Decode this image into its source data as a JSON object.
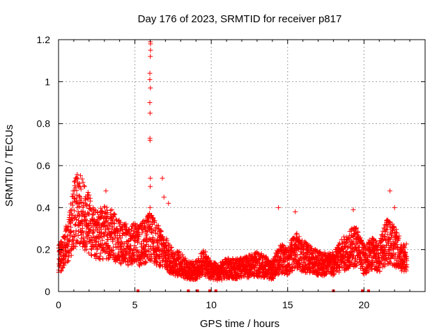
{
  "chart_data": {
    "type": "scatter",
    "title": "Day 176 of 2023, SRMTID for receiver p817",
    "xlabel": "GPS time / hours",
    "ylabel": "SRMTID / TECUs",
    "xlim": [
      0,
      24
    ],
    "ylim": [
      0,
      1.2
    ],
    "xticks": [
      0,
      5,
      10,
      15,
      20
    ],
    "xtick_labels": [
      "0",
      "5",
      "10",
      "15",
      "20"
    ],
    "yticks": [
      0,
      0.2,
      0.4,
      0.6,
      0.8,
      1.0,
      1.2
    ],
    "ytick_labels": [
      "0",
      "0.2",
      "0.4",
      "0.6",
      "0.8",
      "1",
      "1.2"
    ],
    "grid": true,
    "marker": "plus",
    "marker_color": "#ff0000",
    "envelope": [
      [
        0.0,
        0.16
      ],
      [
        0.3,
        0.18
      ],
      [
        0.5,
        0.22
      ],
      [
        0.8,
        0.3
      ],
      [
        1.0,
        0.36
      ],
      [
        1.3,
        0.4
      ],
      [
        1.5,
        0.38
      ],
      [
        1.8,
        0.34
      ],
      [
        2.2,
        0.3
      ],
      [
        2.5,
        0.27
      ],
      [
        3.0,
        0.28
      ],
      [
        3.5,
        0.27
      ],
      [
        4.0,
        0.24
      ],
      [
        4.5,
        0.22
      ],
      [
        5.0,
        0.23
      ],
      [
        5.3,
        0.22
      ],
      [
        5.6,
        0.24
      ],
      [
        6.0,
        0.26
      ],
      [
        6.5,
        0.22
      ],
      [
        7.0,
        0.18
      ],
      [
        7.5,
        0.14
      ],
      [
        8.0,
        0.13
      ],
      [
        8.5,
        0.1
      ],
      [
        9.0,
        0.1
      ],
      [
        9.5,
        0.14
      ],
      [
        10.0,
        0.1
      ],
      [
        10.5,
        0.09
      ],
      [
        11.0,
        0.11
      ],
      [
        11.5,
        0.11
      ],
      [
        12.0,
        0.11
      ],
      [
        12.5,
        0.12
      ],
      [
        13.0,
        0.13
      ],
      [
        13.5,
        0.12
      ],
      [
        14.0,
        0.1
      ],
      [
        14.5,
        0.16
      ],
      [
        15.0,
        0.14
      ],
      [
        15.5,
        0.2
      ],
      [
        16.0,
        0.17
      ],
      [
        16.5,
        0.15
      ],
      [
        17.0,
        0.14
      ],
      [
        17.5,
        0.13
      ],
      [
        18.0,
        0.13
      ],
      [
        18.5,
        0.17
      ],
      [
        19.0,
        0.2
      ],
      [
        19.5,
        0.22
      ],
      [
        20.0,
        0.15
      ],
      [
        20.5,
        0.18
      ],
      [
        21.0,
        0.17
      ],
      [
        21.5,
        0.24
      ],
      [
        22.0,
        0.22
      ],
      [
        22.5,
        0.16
      ],
      [
        22.8,
        0.16
      ]
    ],
    "spike": {
      "x": 6.0,
      "values": [
        1.19,
        1.18,
        1.15,
        1.12,
        1.04,
        1.01,
        0.97,
        0.9,
        0.85,
        0.73,
        0.72,
        0.54,
        0.5,
        0.4
      ]
    },
    "extra_points": [
      [
        1.6,
        0.52
      ],
      [
        1.7,
        0.5
      ],
      [
        2.0,
        0.46
      ],
      [
        3.1,
        0.48
      ],
      [
        6.8,
        0.54
      ],
      [
        6.9,
        0.45
      ],
      [
        7.2,
        0.42
      ],
      [
        14.4,
        0.4
      ],
      [
        15.5,
        0.38
      ],
      [
        19.3,
        0.39
      ],
      [
        21.7,
        0.48
      ],
      [
        22.0,
        0.4
      ]
    ],
    "zero_points": [
      5.2,
      8.5,
      9.1,
      9.9,
      10.3,
      18.0,
      19.9,
      20.3
    ]
  }
}
